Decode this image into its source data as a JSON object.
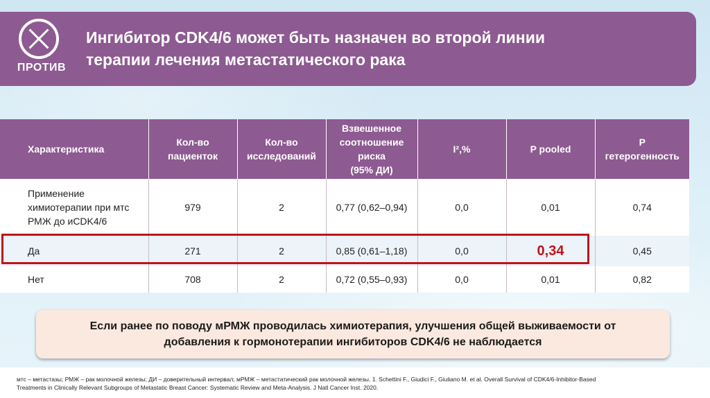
{
  "header": {
    "badge_label": "ПРОТИВ",
    "title_line1": "Ингибитор CDK4/6 может быть назначен во второй линии",
    "title_line2": "терапии лечения метастатического рака"
  },
  "table": {
    "columns": [
      "Характеристика",
      "Кол-во пациенток",
      "Кол-во исследований",
      "Взвешенное соотношение риска (95% ДИ)",
      "I²,%",
      "P pooled",
      "P гетерогенность"
    ],
    "col_lines": {
      "c2a": "Кол-во",
      "c2b": "пациенток",
      "c3a": "Кол-во",
      "c3b": "исследований",
      "c4a": "Взвешенное",
      "c4b": "соотношение",
      "c4c": "риска",
      "c4d": "(95% ДИ)",
      "c5": "I²,%",
      "c6": "P pooled",
      "c7a": "P",
      "c7b": "гетерогенность"
    },
    "rows": [
      {
        "characteristic_l1": "Применение",
        "characteristic_l2": "химиотерапии при мтс",
        "characteristic_l3": "РМЖ до иCDK4/6",
        "patients": "979",
        "studies": "2",
        "hr": "0,77 (0,62–0,94)",
        "i2": "0,0",
        "p_pooled": "0,01",
        "p_het": "0,74"
      },
      {
        "characteristic": "Да",
        "patients": "271",
        "studies": "2",
        "hr": "0,85 (0,61–1,18)",
        "i2": "0,0",
        "p_pooled": "0,34",
        "p_het": "0,45"
      },
      {
        "characteristic": "Нет",
        "patients": "708",
        "studies": "2",
        "hr": "0,72 (0,55–0,93)",
        "i2": "0,0",
        "p_pooled": "0,01",
        "p_het": "0,82"
      }
    ]
  },
  "note": {
    "line1": "Если ранее по поводу мРМЖ проводилась химиотерапия, улучшения общей выживаемости от",
    "line2": "добавления к гормонотерапии ингибиторов CDK4/6 не наблюдается"
  },
  "footnote": {
    "line1": "мтс – метастазы; РМЖ – рак молочной железы; ДИ – доверительный интервал; мРМЖ – метастатический рак молочной железы. 1. Schettini F., Giudici F., Giuliano M. et al. Overall Survival of CDK4/6-Inhibitor-Based",
    "line2": "Treatments in Clinically Relevant Subgroups of Metastatic Breast Cancer: Systematic Review and Meta-Analysis. J Natl Cancer Inst. 2020."
  },
  "colors": {
    "header_purple": "#8d5a91",
    "highlight_red": "#c0131b",
    "note_bg": "#fbe9e0"
  }
}
